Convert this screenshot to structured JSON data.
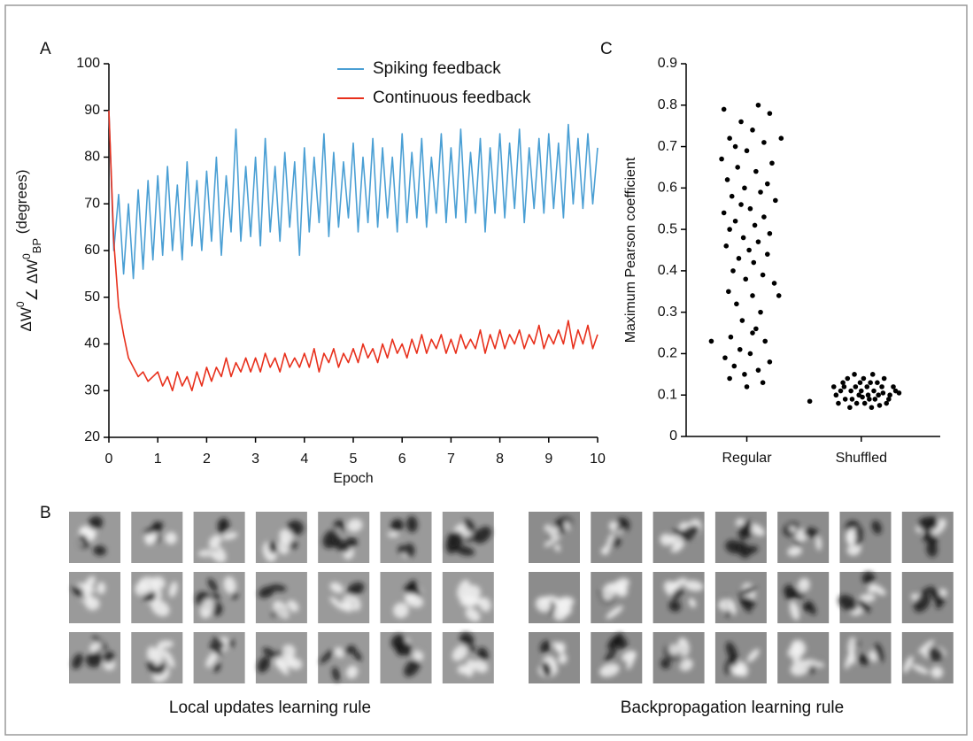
{
  "chart_data": [
    {
      "type": "line",
      "panel": "A",
      "xlabel": "Epoch",
      "ylabel": [
        "ΔW",
        "0",
        "∠ ΔW",
        "0",
        "BP",
        " (degrees)"
      ],
      "x": [
        0,
        0.1,
        0.2,
        0.3,
        0.4,
        0.5,
        0.6,
        0.7,
        0.8,
        0.9,
        1,
        1.1,
        1.2,
        1.3,
        1.4,
        1.5,
        1.6,
        1.7,
        1.8,
        1.9,
        2,
        2.1,
        2.2,
        2.3,
        2.4,
        2.5,
        2.6,
        2.7,
        2.8,
        2.9,
        3,
        3.1,
        3.2,
        3.3,
        3.4,
        3.5,
        3.6,
        3.7,
        3.8,
        3.9,
        4,
        4.1,
        4.2,
        4.3,
        4.4,
        4.5,
        4.6,
        4.7,
        4.8,
        4.9,
        5,
        5.1,
        5.2,
        5.3,
        5.4,
        5.5,
        5.6,
        5.7,
        5.8,
        5.9,
        6,
        6.1,
        6.2,
        6.3,
        6.4,
        6.5,
        6.6,
        6.7,
        6.8,
        6.9,
        7,
        7.1,
        7.2,
        7.3,
        7.4,
        7.5,
        7.6,
        7.7,
        7.8,
        7.9,
        8,
        8.1,
        8.2,
        8.3,
        8.4,
        8.5,
        8.6,
        8.7,
        8.8,
        8.9,
        9,
        9.1,
        9.2,
        9.3,
        9.4,
        9.5,
        9.6,
        9.7,
        9.8,
        9.9,
        10
      ],
      "series": [
        {
          "name": "Spiking feedback",
          "color": "#4a9fd4",
          "values": [
            90,
            60,
            72,
            55,
            70,
            54,
            73,
            56,
            75,
            58,
            76,
            59,
            78,
            60,
            74,
            58,
            79,
            61,
            75,
            60,
            77,
            62,
            80,
            59,
            76,
            64,
            86,
            62,
            78,
            63,
            80,
            61,
            84,
            64,
            78,
            62,
            81,
            65,
            79,
            59,
            82,
            64,
            80,
            66,
            85,
            63,
            81,
            65,
            79,
            67,
            83,
            64,
            80,
            66,
            84,
            65,
            82,
            67,
            80,
            64,
            85,
            66,
            81,
            67,
            84,
            65,
            80,
            68,
            85,
            66,
            82,
            67,
            86,
            66,
            81,
            68,
            84,
            64,
            82,
            68,
            85,
            67,
            83,
            69,
            86,
            66,
            82,
            69,
            84,
            68,
            85,
            69,
            83,
            67,
            87,
            70,
            84,
            69,
            85,
            70,
            82
          ]
        },
        {
          "name": "Continuous feedback",
          "color": "#e8301c",
          "values": [
            90,
            62,
            48,
            42,
            37,
            35,
            33,
            34,
            32,
            33,
            34,
            31,
            33,
            30,
            34,
            31,
            33,
            30,
            34,
            31,
            35,
            32,
            35,
            33,
            37,
            33,
            36,
            34,
            37,
            34,
            37,
            34,
            38,
            35,
            37,
            34,
            38,
            35,
            37,
            35,
            38,
            35,
            39,
            34,
            38,
            36,
            39,
            35,
            38,
            36,
            39,
            36,
            40,
            37,
            39,
            36,
            40,
            37,
            41,
            38,
            40,
            37,
            41,
            38,
            42,
            38,
            41,
            39,
            42,
            38,
            41,
            38,
            42,
            39,
            41,
            39,
            43,
            38,
            42,
            39,
            43,
            39,
            42,
            40,
            43,
            39,
            42,
            40,
            44,
            39,
            42,
            40,
            43,
            40,
            45,
            39,
            43,
            40,
            44,
            39,
            42
          ]
        }
      ],
      "xlim": [
        0,
        10
      ],
      "xticks": [
        0,
        1,
        2,
        3,
        4,
        5,
        6,
        7,
        8,
        9,
        10
      ],
      "ylim": [
        20,
        100
      ],
      "yticks": [
        20,
        30,
        40,
        50,
        60,
        70,
        80,
        90,
        100
      ],
      "legend": "top-right"
    },
    {
      "type": "scatter",
      "panel": "C",
      "ylabel": "Maximum Pearson coefficient",
      "color": "#000000",
      "x": [
        0.8,
        1.1,
        1.2,
        0.95,
        1.05,
        0.85,
        1.15,
        1.3,
        0.9,
        1.0,
        0.78,
        1.22,
        0.92,
        1.08,
        0.83,
        1.18,
        0.98,
        1.12,
        0.87,
        1.25,
        0.95,
        1.03,
        0.8,
        1.15,
        0.9,
        1.07,
        0.85,
        1.2,
        0.97,
        1.1,
        0.82,
        1.02,
        1.18,
        0.93,
        1.06,
        0.88,
        1.14,
        0.99,
        1.24,
        0.84,
        1.05,
        1.28,
        0.91,
        1.12,
        0.96,
        1.08,
        0.86,
        1.16,
        0.69,
        0.94,
        1.03,
        0.81,
        1.2,
        0.89,
        1.1,
        0.98,
        0.85,
        1.14,
        1.0,
        1.05,
        1.55,
        1.78,
        1.85,
        1.92,
        2.0,
        2.08,
        2.15,
        2.22,
        2.3,
        1.8,
        1.88,
        1.95,
        2.03,
        2.1,
        2.18,
        2.25,
        1.82,
        1.9,
        1.98,
        2.05,
        2.12,
        2.2,
        2.28,
        1.76,
        1.86,
        1.94,
        2.02,
        2.07,
        2.14,
        2.24,
        2.33,
        1.84,
        1.96,
        2.06,
        2.16,
        1.91,
        2.01,
        2.11,
        2.19,
        1.99,
        2.09
      ],
      "values": [
        0.79,
        0.8,
        0.78,
        0.76,
        0.74,
        0.72,
        0.71,
        0.72,
        0.7,
        0.69,
        0.67,
        0.66,
        0.65,
        0.64,
        0.62,
        0.61,
        0.6,
        0.59,
        0.58,
        0.57,
        0.56,
        0.55,
        0.54,
        0.53,
        0.52,
        0.51,
        0.5,
        0.49,
        0.48,
        0.47,
        0.46,
        0.45,
        0.44,
        0.43,
        0.42,
        0.4,
        0.39,
        0.38,
        0.37,
        0.35,
        0.34,
        0.34,
        0.32,
        0.3,
        0.28,
        0.26,
        0.24,
        0.23,
        0.23,
        0.21,
        0.2,
        0.19,
        0.18,
        0.17,
        0.16,
        0.15,
        0.14,
        0.13,
        0.12,
        0.25,
        0.085,
        0.1,
        0.12,
        0.09,
        0.11,
        0.13,
        0.1,
        0.08,
        0.11,
        0.08,
        0.14,
        0.12,
        0.08,
        0.15,
        0.12,
        0.1,
        0.11,
        0.07,
        0.1,
        0.12,
        0.09,
        0.14,
        0.12,
        0.12,
        0.09,
        0.15,
        0.14,
        0.09,
        0.13,
        0.09,
        0.105,
        0.13,
        0.08,
        0.1,
        0.075,
        0.11,
        0.095,
        0.11,
        0.105,
        0.13,
        0.07
      ],
      "xlim": [
        0.47,
        2.69
      ],
      "xticks": [
        {
          "value": 1,
          "label": "Regular"
        },
        {
          "value": 2,
          "label": "Shuffled"
        }
      ],
      "ylim": [
        0,
        0.9
      ],
      "yticks": [
        0,
        0.1,
        0.2,
        0.3,
        0.4,
        0.5,
        0.6,
        0.7,
        0.8,
        0.9
      ]
    }
  ],
  "panel_b": {
    "panel": "B",
    "captions": [
      "Local updates learning rule",
      "Backpropagation learning rule"
    ]
  }
}
